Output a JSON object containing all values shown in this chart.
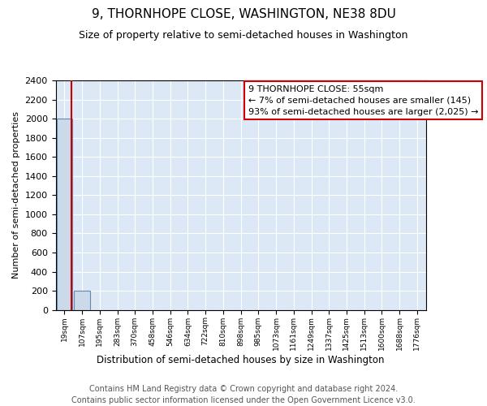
{
  "title": "9, THORNHOPE CLOSE, WASHINGTON, NE38 8DU",
  "subtitle": "Size of property relative to semi-detached houses in Washington",
  "xlabel": "Distribution of semi-detached houses by size in Washington",
  "ylabel": "Number of semi-detached properties",
  "bar_values": [
    2000,
    200,
    0,
    0,
    0,
    0,
    0,
    0,
    0,
    0,
    0,
    0,
    0,
    0,
    0,
    0,
    0,
    0,
    0,
    0,
    0
  ],
  "bar_labels": [
    "19sqm",
    "107sqm",
    "195sqm",
    "283sqm",
    "370sqm",
    "458sqm",
    "546sqm",
    "634sqm",
    "722sqm",
    "810sqm",
    "898sqm",
    "985sqm",
    "1073sqm",
    "1161sqm",
    "1249sqm",
    "1337sqm",
    "1425sqm",
    "1513sqm",
    "1600sqm",
    "1688sqm",
    "1776sqm"
  ],
  "bar_color": "#ccd9e8",
  "bar_edge_color": "#5b8db8",
  "ylim": [
    0,
    2400
  ],
  "yticks": [
    0,
    200,
    400,
    600,
    800,
    1000,
    1200,
    1400,
    1600,
    1800,
    2000,
    2200,
    2400
  ],
  "property_line_x": 0.38,
  "property_line_color": "#cc0000",
  "annotation_line1": "9 THORNHOPE CLOSE: 55sqm",
  "annotation_line2": "← 7% of semi-detached houses are smaller (145)",
  "annotation_line3": "93% of semi-detached houses are larger (2,025) →",
  "annotation_box_color": "#cc0000",
  "footer_line1": "Contains HM Land Registry data © Crown copyright and database right 2024.",
  "footer_line2": "Contains public sector information licensed under the Open Government Licence v3.0.",
  "background_color": "#ffffff",
  "plot_bg_color": "#dce8f5",
  "grid_color": "#ffffff",
  "title_fontsize": 11,
  "subtitle_fontsize": 9,
  "footer_fontsize": 7
}
